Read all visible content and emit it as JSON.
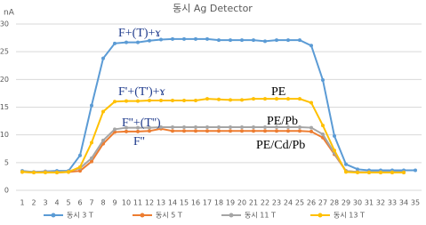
{
  "chart_data": {
    "type": "line",
    "title": "동시 Ag Detector",
    "y_label": "nA",
    "categories": [
      "1",
      "2",
      "3",
      "4",
      "5",
      "6",
      "7",
      "8",
      "9",
      "10",
      "11",
      "12",
      "13",
      "14",
      "15",
      "16",
      "17",
      "18",
      "19",
      "20",
      "21",
      "22",
      "23",
      "24",
      "25",
      "26",
      "27",
      "28",
      "29",
      "30",
      "31",
      "32",
      "33",
      "34",
      "35"
    ],
    "ylim": [
      0,
      30
    ],
    "yticks": [
      0,
      5,
      10,
      15,
      20,
      25,
      30
    ],
    "grid": true,
    "legend": "bottom",
    "series": [
      {
        "name": "동시 3 T",
        "color": "#5b9bd5",
        "values": [
          3.5,
          3.3,
          3.4,
          3.5,
          3.5,
          6.3,
          15.3,
          23.8,
          26.5,
          26.7,
          26.7,
          27,
          27.2,
          27.3,
          27.3,
          27.3,
          27.3,
          27.1,
          27.1,
          27.1,
          27.1,
          26.9,
          27.1,
          27.1,
          27.1,
          26.1,
          19.9,
          9.8,
          4.7,
          3.8,
          3.6,
          3.6,
          3.6,
          3.6,
          3.6
        ]
      },
      {
        "name": "동시 5 T",
        "color": "#ed7d31",
        "values": [
          3.3,
          3.2,
          3.3,
          3.2,
          3.3,
          3.5,
          5.2,
          8.4,
          10.5,
          10.6,
          10.6,
          10.7,
          11.1,
          10.7,
          10.7,
          10.7,
          10.7,
          10.7,
          10.7,
          10.7,
          10.7,
          10.7,
          10.7,
          10.7,
          10.7,
          10.6,
          9.5,
          6.5,
          3.5,
          3.3,
          3.2,
          3.2,
          3.2,
          3.2,
          null
        ]
      },
      {
        "name": "동시 11 T",
        "color": "#a5a5a5",
        "values": [
          3.4,
          3.3,
          3.4,
          3.3,
          3.4,
          4,
          5.8,
          9,
          11,
          11.3,
          11.3,
          11.3,
          11.4,
          11.4,
          11.4,
          11.4,
          11.4,
          11.4,
          11.4,
          11.4,
          11.4,
          11.4,
          11.4,
          11.4,
          11.4,
          11.3,
          10.1,
          6.7,
          3.5,
          3.3,
          3.3,
          3.3,
          3.3,
          3.3,
          null
        ]
      },
      {
        "name": "동시 13 T",
        "color": "#ffc000",
        "values": [
          3.3,
          3.2,
          3.2,
          3.2,
          3.3,
          4.2,
          8.6,
          14.2,
          16,
          16.1,
          16.1,
          16.2,
          16.2,
          16.2,
          16.2,
          16.2,
          16.5,
          16.4,
          16.3,
          16.3,
          16.5,
          16.5,
          16.5,
          16.5,
          16.5,
          15.8,
          11.7,
          7.2,
          3.3,
          3.2,
          3.2,
          3.2,
          3.2,
          3.2,
          null
        ]
      }
    ],
    "annotations": [
      {
        "text": "F+(T)+ɤ",
        "color": "#1f3b8c"
      },
      {
        "text": "F'+(T')+ɤ",
        "color": "#1f3b8c"
      },
      {
        "text": "PE",
        "color": "#000000"
      },
      {
        "text": "F''+(T'')",
        "color": "#1f3b8c"
      },
      {
        "text": "PE/Pb",
        "color": "#000000"
      },
      {
        "text": "F''",
        "color": "#1f3b8c"
      },
      {
        "text": "PE/Cd/Pb",
        "color": "#000000"
      }
    ]
  }
}
